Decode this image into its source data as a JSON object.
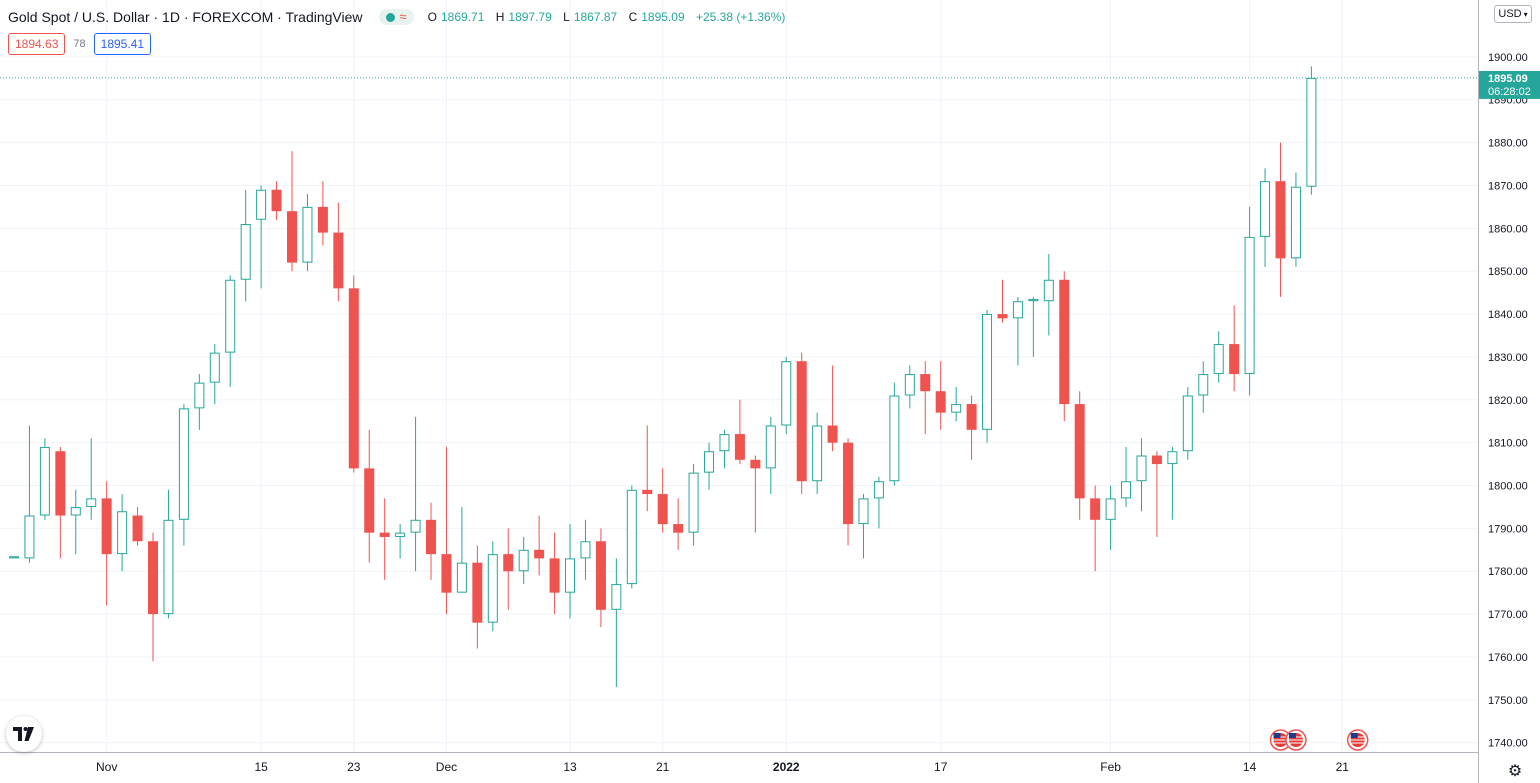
{
  "header": {
    "title": "Gold Spot / U.S. Dollar · 1D · FOREXCOM · TradingView",
    "ohlc": {
      "o_label": "O",
      "o": "1869.71",
      "h_label": "H",
      "h": "1897.79",
      "l_label": "L",
      "l": "1867.87",
      "c_label": "C",
      "c": "1895.09",
      "change": "+25.38 (+1.36%)"
    },
    "bid": "1894.63",
    "spread": "78",
    "ask": "1895.41",
    "currency": "USD"
  },
  "price_label": {
    "price": "1895.09",
    "countdown": "06:28:02"
  },
  "colors": {
    "up": "#26a69a",
    "down": "#ef5350",
    "grid": "#f0f3fa",
    "text": "#131722",
    "lastPrice": "#26a69a"
  },
  "icons": [
    "tradingview-logo-icon",
    "us-flag-icon",
    "gear-icon",
    "status-dot-icon",
    "wave-icon",
    "chevron-down-icon"
  ],
  "chart_data": {
    "type": "candlestick",
    "title": "Gold Spot / U.S. Dollar",
    "ylim": [
      1738,
      1910
    ],
    "y_ticks": [
      1740,
      1750,
      1760,
      1770,
      1780,
      1790,
      1800,
      1810,
      1820,
      1830,
      1840,
      1850,
      1860,
      1870,
      1880,
      1890,
      1900
    ],
    "x_ticks": [
      {
        "label": "Nov",
        "index": 6,
        "bold": false
      },
      {
        "label": "15",
        "index": 16,
        "bold": false
      },
      {
        "label": "23",
        "index": 22,
        "bold": false
      },
      {
        "label": "Dec",
        "index": 28,
        "bold": false
      },
      {
        "label": "13",
        "index": 36,
        "bold": false
      },
      {
        "label": "21",
        "index": 42,
        "bold": false
      },
      {
        "label": "2022",
        "index": 50,
        "bold": true
      },
      {
        "label": "17",
        "index": 60,
        "bold": false
      },
      {
        "label": "Feb",
        "index": 71,
        "bold": false
      },
      {
        "label": "14",
        "index": 80,
        "bold": false
      },
      {
        "label": "21",
        "index": 86,
        "bold": false
      }
    ],
    "last_price": 1895.09,
    "events": [
      {
        "label": "US",
        "index": 82
      },
      {
        "label": "US",
        "index": 83
      },
      {
        "label": "US",
        "index": 87
      }
    ],
    "candles": [
      {
        "o": 1783.0,
        "h": 1783.0,
        "l": 1783.0,
        "c": 1783.5
      },
      {
        "o": 1783.0,
        "h": 1814.0,
        "l": 1782.0,
        "c": 1793.0
      },
      {
        "o": 1793.0,
        "h": 1811.0,
        "l": 1792.0,
        "c": 1809.0
      },
      {
        "o": 1808.0,
        "h": 1809.0,
        "l": 1783.0,
        "c": 1793.0
      },
      {
        "o": 1793.0,
        "h": 1799.0,
        "l": 1784.0,
        "c": 1795.0
      },
      {
        "o": 1795.0,
        "h": 1811.0,
        "l": 1792.0,
        "c": 1797.0
      },
      {
        "o": 1797.0,
        "h": 1801.0,
        "l": 1772.0,
        "c": 1784.0
      },
      {
        "o": 1784.0,
        "h": 1798.0,
        "l": 1780.0,
        "c": 1794.0
      },
      {
        "o": 1793.0,
        "h": 1795.0,
        "l": 1786.0,
        "c": 1787.0
      },
      {
        "o": 1787.0,
        "h": 1789.0,
        "l": 1759.0,
        "c": 1770.0
      },
      {
        "o": 1770.0,
        "h": 1799.0,
        "l": 1769.0,
        "c": 1792.0
      },
      {
        "o": 1792.0,
        "h": 1819.0,
        "l": 1786.0,
        "c": 1818.0
      },
      {
        "o": 1818.0,
        "h": 1826.0,
        "l": 1813.0,
        "c": 1824.0
      },
      {
        "o": 1824.0,
        "h": 1833.0,
        "l": 1819.0,
        "c": 1831.0
      },
      {
        "o": 1831.0,
        "h": 1849.0,
        "l": 1823.0,
        "c": 1848.0
      },
      {
        "o": 1848.0,
        "h": 1869.0,
        "l": 1843.0,
        "c": 1861.0
      },
      {
        "o": 1862.0,
        "h": 1870.0,
        "l": 1846.0,
        "c": 1869.0
      },
      {
        "o": 1869.0,
        "h": 1871.0,
        "l": 1862.0,
        "c": 1864.0
      },
      {
        "o": 1864.0,
        "h": 1878.0,
        "l": 1850.0,
        "c": 1852.0
      },
      {
        "o": 1852.0,
        "h": 1868.0,
        "l": 1850.0,
        "c": 1865.0
      },
      {
        "o": 1865.0,
        "h": 1871.0,
        "l": 1856.0,
        "c": 1859.0
      },
      {
        "o": 1859.0,
        "h": 1866.0,
        "l": 1843.0,
        "c": 1846.0
      },
      {
        "o": 1846.0,
        "h": 1849.0,
        "l": 1803.0,
        "c": 1804.0
      },
      {
        "o": 1804.0,
        "h": 1813.0,
        "l": 1782.0,
        "c": 1789.0
      },
      {
        "o": 1789.0,
        "h": 1797.0,
        "l": 1778.0,
        "c": 1788.0
      },
      {
        "o": 1788.0,
        "h": 1791.0,
        "l": 1783.0,
        "c": 1789.0
      },
      {
        "o": 1789.0,
        "h": 1816.0,
        "l": 1780.0,
        "c": 1792.0
      },
      {
        "o": 1792.0,
        "h": 1796.0,
        "l": 1778.0,
        "c": 1784.0
      },
      {
        "o": 1784.0,
        "h": 1809.0,
        "l": 1770.0,
        "c": 1775.0
      },
      {
        "o": 1775.0,
        "h": 1795.0,
        "l": 1775.0,
        "c": 1782.0
      },
      {
        "o": 1782.0,
        "h": 1786.0,
        "l": 1762.0,
        "c": 1768.0
      },
      {
        "o": 1768.0,
        "h": 1787.0,
        "l": 1766.0,
        "c": 1784.0
      },
      {
        "o": 1784.0,
        "h": 1790.0,
        "l": 1771.0,
        "c": 1780.0
      },
      {
        "o": 1780.0,
        "h": 1788.0,
        "l": 1777.0,
        "c": 1785.0
      },
      {
        "o": 1785.0,
        "h": 1793.0,
        "l": 1779.0,
        "c": 1783.0
      },
      {
        "o": 1783.0,
        "h": 1789.0,
        "l": 1770.0,
        "c": 1775.0
      },
      {
        "o": 1775.0,
        "h": 1791.0,
        "l": 1769.0,
        "c": 1783.0
      },
      {
        "o": 1783.0,
        "h": 1792.0,
        "l": 1778.0,
        "c": 1787.0
      },
      {
        "o": 1787.0,
        "h": 1790.0,
        "l": 1767.0,
        "c": 1771.0
      },
      {
        "o": 1771.0,
        "h": 1783.0,
        "l": 1753.0,
        "c": 1777.0
      },
      {
        "o": 1777.0,
        "h": 1800.0,
        "l": 1776.0,
        "c": 1799.0
      },
      {
        "o": 1799.0,
        "h": 1814.0,
        "l": 1794.0,
        "c": 1798.0
      },
      {
        "o": 1798.0,
        "h": 1804.0,
        "l": 1789.0,
        "c": 1791.0
      },
      {
        "o": 1791.0,
        "h": 1797.0,
        "l": 1785.0,
        "c": 1789.0
      },
      {
        "o": 1789.0,
        "h": 1805.0,
        "l": 1786.0,
        "c": 1803.0
      },
      {
        "o": 1803.0,
        "h": 1810.0,
        "l": 1799.0,
        "c": 1808.0
      },
      {
        "o": 1808.0,
        "h": 1813.0,
        "l": 1804.0,
        "c": 1812.0
      },
      {
        "o": 1812.0,
        "h": 1820.0,
        "l": 1805.0,
        "c": 1806.0
      },
      {
        "o": 1806.0,
        "h": 1807.0,
        "l": 1789.0,
        "c": 1804.0
      },
      {
        "o": 1804.0,
        "h": 1816.0,
        "l": 1798.0,
        "c": 1814.0
      },
      {
        "o": 1814.0,
        "h": 1830.0,
        "l": 1812.0,
        "c": 1829.0
      },
      {
        "o": 1829.0,
        "h": 1831.0,
        "l": 1798.0,
        "c": 1801.0
      },
      {
        "o": 1801.0,
        "h": 1817.0,
        "l": 1798.0,
        "c": 1814.0
      },
      {
        "o": 1814.0,
        "h": 1828.0,
        "l": 1808.0,
        "c": 1810.0
      },
      {
        "o": 1810.0,
        "h": 1811.0,
        "l": 1786.0,
        "c": 1791.0
      },
      {
        "o": 1791.0,
        "h": 1798.0,
        "l": 1783.0,
        "c": 1797.0
      },
      {
        "o": 1797.0,
        "h": 1802.0,
        "l": 1790.0,
        "c": 1801.0
      },
      {
        "o": 1801.0,
        "h": 1824.0,
        "l": 1800.0,
        "c": 1821.0
      },
      {
        "o": 1821.0,
        "h": 1828.0,
        "l": 1818.0,
        "c": 1826.0
      },
      {
        "o": 1826.0,
        "h": 1829.0,
        "l": 1812.0,
        "c": 1822.0
      },
      {
        "o": 1822.0,
        "h": 1829.0,
        "l": 1813.0,
        "c": 1817.0
      },
      {
        "o": 1817.0,
        "h": 1823.0,
        "l": 1815.0,
        "c": 1819.0
      },
      {
        "o": 1819.0,
        "h": 1821.0,
        "l": 1806.0,
        "c": 1813.0
      },
      {
        "o": 1813.0,
        "h": 1841.0,
        "l": 1810.0,
        "c": 1840.0
      },
      {
        "o": 1840.0,
        "h": 1848.0,
        "l": 1838.0,
        "c": 1839.0
      },
      {
        "o": 1839.0,
        "h": 1844.0,
        "l": 1828.0,
        "c": 1843.0
      },
      {
        "o": 1843.0,
        "h": 1844.0,
        "l": 1830.0,
        "c": 1843.5
      },
      {
        "o": 1843.0,
        "h": 1854.0,
        "l": 1835.0,
        "c": 1848.0
      },
      {
        "o": 1848.0,
        "h": 1850.0,
        "l": 1815.0,
        "c": 1819.0
      },
      {
        "o": 1819.0,
        "h": 1822.0,
        "l": 1792.0,
        "c": 1797.0
      },
      {
        "o": 1797.0,
        "h": 1800.0,
        "l": 1780.0,
        "c": 1792.0
      },
      {
        "o": 1792.0,
        "h": 1800.0,
        "l": 1785.0,
        "c": 1797.0
      },
      {
        "o": 1797.0,
        "h": 1809.0,
        "l": 1795.0,
        "c": 1801.0
      },
      {
        "o": 1801.0,
        "h": 1811.0,
        "l": 1794.0,
        "c": 1807.0
      },
      {
        "o": 1807.0,
        "h": 1808.0,
        "l": 1788.0,
        "c": 1805.0
      },
      {
        "o": 1805.0,
        "h": 1809.0,
        "l": 1792.0,
        "c": 1808.0
      },
      {
        "o": 1808.0,
        "h": 1823.0,
        "l": 1806.0,
        "c": 1821.0
      },
      {
        "o": 1821.0,
        "h": 1829.0,
        "l": 1817.0,
        "c": 1826.0
      },
      {
        "o": 1826.0,
        "h": 1836.0,
        "l": 1824.0,
        "c": 1833.0
      },
      {
        "o": 1833.0,
        "h": 1842.0,
        "l": 1822.0,
        "c": 1826.0
      },
      {
        "o": 1826.0,
        "h": 1865.0,
        "l": 1821.0,
        "c": 1858.0
      },
      {
        "o": 1858.0,
        "h": 1874.0,
        "l": 1851.0,
        "c": 1871.0
      },
      {
        "o": 1871.0,
        "h": 1880.0,
        "l": 1844.0,
        "c": 1853.0
      },
      {
        "o": 1853.0,
        "h": 1873.0,
        "l": 1851.0,
        "c": 1869.71
      },
      {
        "o": 1869.71,
        "h": 1897.79,
        "l": 1867.87,
        "c": 1895.09
      }
    ]
  }
}
